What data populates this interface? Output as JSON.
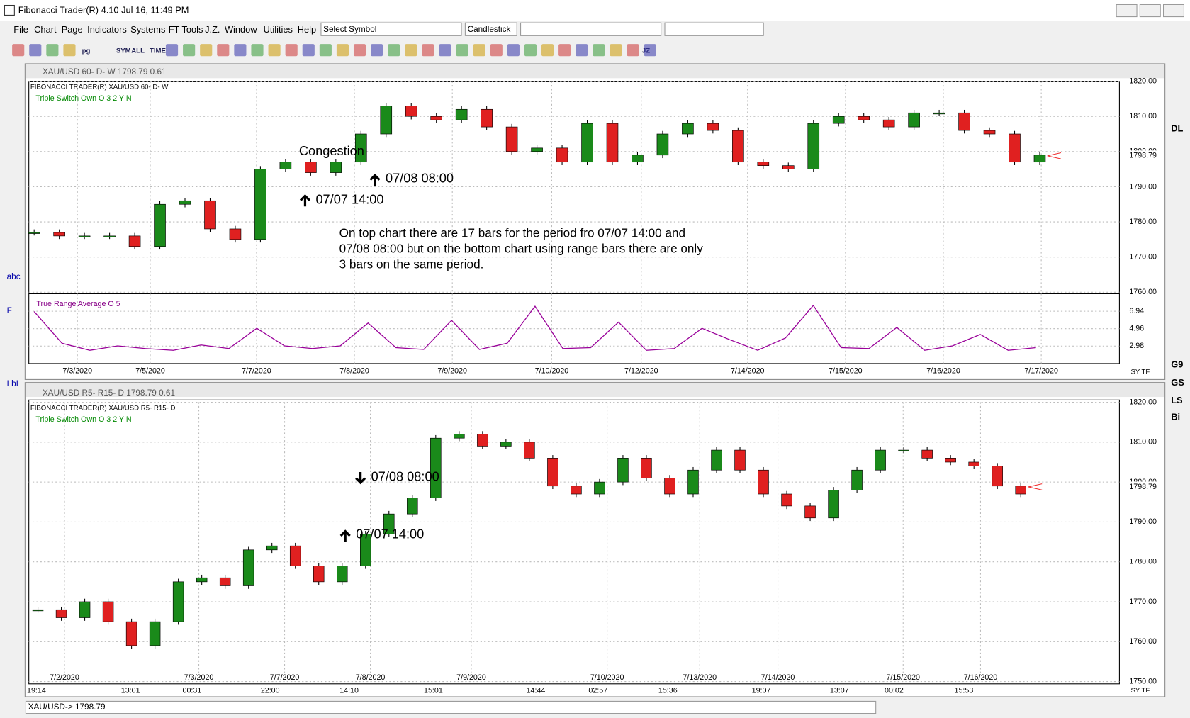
{
  "window": {
    "title": "Fibonacci Trader(R) 4.10 Jul 16,  11:49 PM"
  },
  "menu": [
    "File",
    "Chart",
    "Page",
    "Indicators",
    "Systems",
    "FT Tools",
    "J.Z.",
    "Window",
    "Utilities",
    "Help"
  ],
  "symbol_box": "Select Symbol",
  "chart_type_box": "Candlestick",
  "toolbar": [
    "pg",
    "SYM",
    "ALL",
    "TIME",
    "JZ"
  ],
  "left_tools": [
    "abc",
    "F",
    "LbL"
  ],
  "right_tools": [
    "DL",
    "G9",
    "GS",
    "LS",
    "Bi"
  ],
  "top_chart": {
    "title_bar": "XAU/USD 60- D- W   1798.79  0.61",
    "header": "FIBONACCI TRADER(R)      XAU/USD 60- D- W",
    "study": "Triple Switch Own O 3 2 Y N",
    "ylim": [
      1760,
      1820
    ],
    "yticks": [
      {
        "value": 1760,
        "label": "1760.00"
      },
      {
        "value": 1770,
        "label": "1770.00"
      },
      {
        "value": 1780,
        "label": "1780.00"
      },
      {
        "value": 1790,
        "label": "1790.00"
      },
      {
        "value": 1800,
        "label": "1800.00"
      },
      {
        "value": 1810,
        "label": "1810.00"
      },
      {
        "value": 1820,
        "label": "1820.00"
      }
    ],
    "last_price": 1798.79,
    "xlabels": [
      "7/3/2020",
      "7/5/2020",
      "7/7/2020",
      "7/8/2020",
      "7/9/2020",
      "7/10/2020",
      "7/12/2020",
      "7/14/2020",
      "7/15/2020",
      "7/16/2020",
      "7/17/2020"
    ],
    "annotations": [
      "Congestion",
      "07/08 08:00",
      "07/07 14:00"
    ],
    "note": [
      "On top chart there are 17 bars for the period fro 07/07 14:00 and",
      "07/08 08:00 but on the bottom chart using range bars there are only",
      "3 bars on the same period."
    ],
    "closes": [
      1777,
      1776,
      1776,
      1776,
      1773,
      1785,
      1786,
      1778,
      1775,
      1795,
      1797,
      1794,
      1797,
      1805,
      1813,
      1810,
      1809,
      1812,
      1807,
      1800,
      1801,
      1797,
      1808,
      1797,
      1799,
      1805,
      1808,
      1806,
      1797,
      1796,
      1795,
      1808,
      1810,
      1809,
      1807,
      1811,
      1811,
      1806,
      1805,
      1797,
      1799
    ],
    "indicator": {
      "title": "True Range Average O 5",
      "ylim": [
        1.08,
        8.67
      ],
      "yticks": [
        2.98,
        4.96,
        6.94
      ],
      "values": [
        6.9,
        3.3,
        2.5,
        3.0,
        2.7,
        2.5,
        3.1,
        2.7,
        5.0,
        3.0,
        2.7,
        3.0,
        5.6,
        2.8,
        2.6,
        5.9,
        2.6,
        3.3,
        7.5,
        2.7,
        2.8,
        5.7,
        2.5,
        2.7,
        5.0,
        3.7,
        2.5,
        3.9,
        7.6,
        2.8,
        2.7,
        5.1,
        2.5,
        3.0,
        4.3,
        2.5,
        2.8
      ]
    }
  },
  "bottom_chart": {
    "title_bar": "XAU/USD R5- R15- D  1798.79  0.61",
    "header": "FIBONACCI TRADER(R)      XAU/USD R5- R15- D",
    "study": "Triple Switch Own O 3 2 Y N",
    "ylim": [
      1750,
      1820
    ],
    "yticks": [
      {
        "value": 1750,
        "label": "1750.00"
      },
      {
        "value": 1760,
        "label": "1760.00"
      },
      {
        "value": 1770,
        "label": "1770.00"
      },
      {
        "value": 1780,
        "label": "1780.00"
      },
      {
        "value": 1790,
        "label": "1790.00"
      },
      {
        "value": 1800,
        "label": "1800.00"
      },
      {
        "value": 1810,
        "label": "1810.00"
      },
      {
        "value": 1820,
        "label": "1820.00"
      }
    ],
    "last_price": 1798.79,
    "xlabels": [
      "7/2/2020",
      "7/3/2020",
      "7/7/2020",
      "7/8/2020",
      "7/9/2020",
      "7/10/2020",
      "7/13/2020",
      "7/14/2020",
      "7/15/2020",
      "7/16/2020"
    ],
    "time_labels": [
      "19:14",
      "13:01",
      "00:31",
      "22:00",
      "14:10",
      "15:01",
      "14:44",
      "02:57",
      "15:36",
      "19:07",
      "13:07",
      "00:02",
      "15:53"
    ],
    "annotations": [
      "07/08 08:00",
      "07/07 14:00"
    ],
    "closes": [
      1768,
      1766,
      1770,
      1765,
      1759,
      1765,
      1775,
      1776,
      1774,
      1783,
      1784,
      1779,
      1775,
      1779,
      1787,
      1792,
      1796,
      1811,
      1812,
      1809,
      1810,
      1806,
      1799,
      1797,
      1800,
      1806,
      1801,
      1797,
      1803,
      1808,
      1803,
      1797,
      1794,
      1791,
      1798,
      1803,
      1808,
      1808,
      1806,
      1805,
      1804,
      1799,
      1797
    ]
  },
  "status": "XAU/USD->  1798.79",
  "axis_buttons": [
    "SY",
    "TF"
  ]
}
